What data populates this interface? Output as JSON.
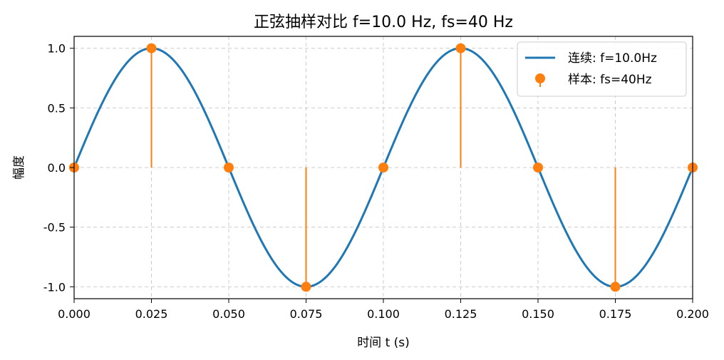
{
  "chart_data": {
    "type": "line",
    "title": "正弦抽样对比 f=10.0 Hz, fs=40 Hz",
    "xlabel": "时间 t (s)",
    "ylabel": "幅度",
    "xlim": [
      0.0,
      0.2
    ],
    "ylim": [
      -1.1,
      1.1
    ],
    "xticks": [
      0.0,
      0.025,
      0.05,
      0.075,
      0.1,
      0.125,
      0.15,
      0.175,
      0.2
    ],
    "xtick_labels": [
      "0.000",
      "0.025",
      "0.050",
      "0.075",
      "0.100",
      "0.125",
      "0.150",
      "0.175",
      "0.200"
    ],
    "yticks": [
      1.0,
      0.5,
      0.0,
      -0.5,
      -1.0
    ],
    "ytick_labels": [
      "1.0",
      "0.5",
      "0.0",
      "-0.5",
      "-1.0"
    ],
    "grid": true,
    "legend_position": "top-right",
    "series": [
      {
        "name": "连续: f=10.0Hz",
        "kind": "line",
        "color": "#1f77b4",
        "frequency_hz": 10.0,
        "amplitude": 1.0,
        "function": "sin"
      },
      {
        "name": "样本: fs=40Hz",
        "kind": "stem",
        "color": "#ff7f0e",
        "x": [
          0.0,
          0.025,
          0.05,
          0.075,
          0.1,
          0.125,
          0.15,
          0.175,
          0.2
        ],
        "y": [
          0.0,
          1.0,
          0.0,
          -1.0,
          0.0,
          1.0,
          0.0,
          -1.0,
          0.0
        ]
      }
    ]
  }
}
